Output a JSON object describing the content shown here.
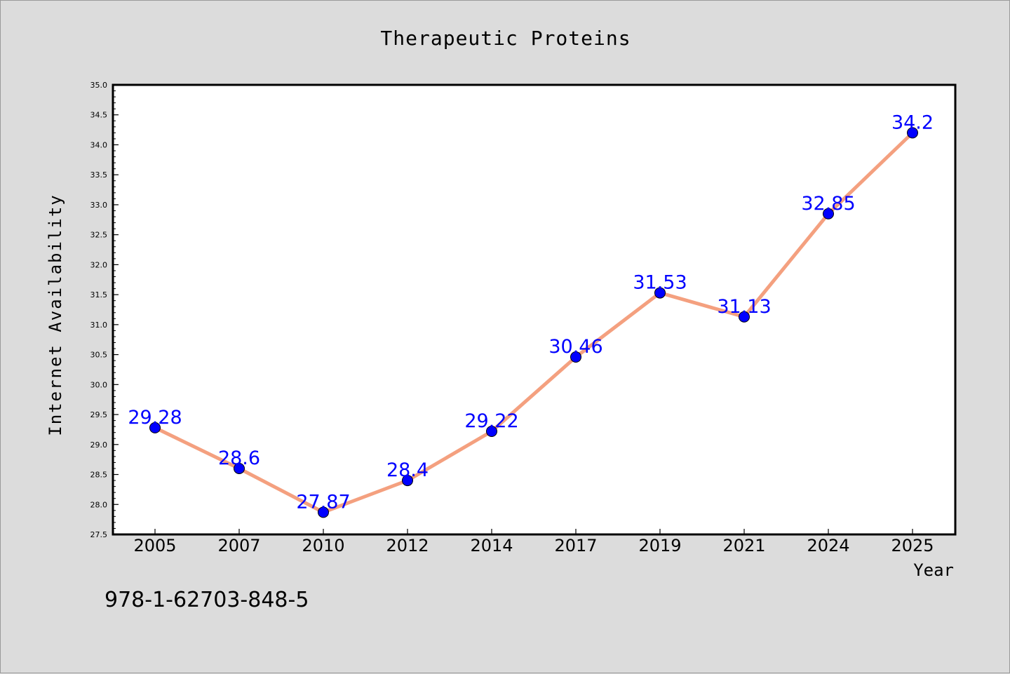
{
  "chart_data": {
    "type": "line",
    "title": "Therapeutic Proteins",
    "xlabel": "Year",
    "ylabel": "Internet Availability",
    "categories": [
      "2005",
      "2007",
      "2010",
      "2012",
      "2014",
      "2017",
      "2019",
      "2021",
      "2024",
      "2025"
    ],
    "values": [
      29.28,
      28.6,
      27.87,
      28.4,
      29.22,
      30.46,
      31.53,
      31.13,
      32.85,
      34.2
    ],
    "data_labels": [
      "29.28",
      "28.6",
      "27.87",
      "28.4",
      "29.22",
      "30.46",
      "31.53",
      "31.13",
      "32.85",
      "34.2"
    ],
    "ylim": [
      27.5,
      35.0
    ],
    "yticks": [
      "27.5",
      "28.0",
      "28.5",
      "29.0",
      "29.5",
      "30.0",
      "30.5",
      "31.0",
      "31.5",
      "32.0",
      "32.5",
      "33.0",
      "33.5",
      "34.0",
      "34.5",
      "35.0"
    ],
    "grid": false,
    "legend": "none",
    "line_color": "#f4a07f",
    "marker_color": "#0000ff",
    "label_color": "#0000ff"
  },
  "footnote": "978-1-62703-848-5"
}
